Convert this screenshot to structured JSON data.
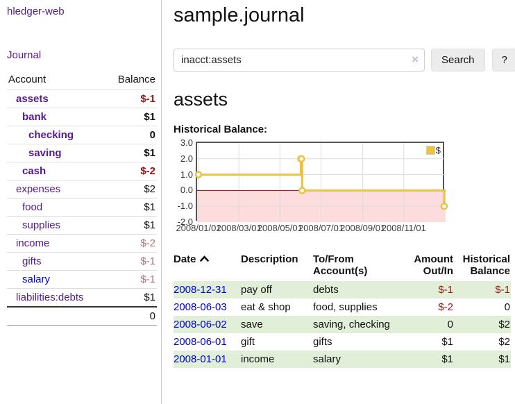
{
  "app": {
    "title": "hledger-web"
  },
  "colors": {
    "link_purple": "#551a8b",
    "link_blue": "#0000cc",
    "negative": "#991111",
    "negative_dim": "#b96f75",
    "row_stripe_green": "#e1efd8",
    "series_gold": "#edc240",
    "negative_region_pink": "#fcdcdc",
    "zero_line_red": "#990000",
    "grid_gray": "#dcdcdc"
  },
  "sidebar": {
    "journal_link": "Journal",
    "headers": {
      "account": "Account",
      "balance": "Balance"
    },
    "accounts": [
      {
        "name": "assets",
        "depth": 1,
        "bold": true,
        "balance": "$-1"
      },
      {
        "name": "bank",
        "depth": 2,
        "bold": true,
        "balance": "$1"
      },
      {
        "name": "checking",
        "depth": 3,
        "bold": true,
        "balance": "0"
      },
      {
        "name": "saving",
        "depth": 3,
        "bold": true,
        "balance": "$1"
      },
      {
        "name": "cash",
        "depth": 2,
        "bold": true,
        "balance": "$-2"
      },
      {
        "name": "expenses",
        "depth": 1,
        "bold": false,
        "balance": "$2"
      },
      {
        "name": "food",
        "depth": 2,
        "bold": false,
        "balance": "$1"
      },
      {
        "name": "supplies",
        "depth": 2,
        "bold": false,
        "balance": "$1"
      },
      {
        "name": "income",
        "depth": 1,
        "bold": false,
        "balance": "$-2"
      },
      {
        "name": "gifts",
        "depth": 2,
        "bold": false,
        "balance": "$-1"
      },
      {
        "name": "salary",
        "depth": 2,
        "bold": false,
        "balance": "$-1",
        "link_style": "unvisited"
      },
      {
        "name": "liabilities:debts",
        "depth": 1,
        "bold": false,
        "balance": "$1"
      }
    ],
    "total": "0"
  },
  "main": {
    "title": "sample.journal",
    "search": {
      "value": "inacct:assets",
      "clear_icon": "×",
      "search_button": "Search",
      "help_button": "?"
    },
    "account_heading": "assets",
    "chart_heading": "Historical Balance:"
  },
  "chart_data": {
    "type": "line",
    "title": "Historical Balance:",
    "step": true,
    "series": [
      {
        "name": "$",
        "color": "#edc240",
        "points": [
          [
            "2008-01-01",
            1
          ],
          [
            "2008-06-01",
            2
          ],
          [
            "2008-06-02",
            2
          ],
          [
            "2008-06-03",
            0
          ],
          [
            "2008-12-31",
            -1
          ]
        ]
      }
    ],
    "xrange": [
      "2008-01-01",
      "2008-12-31"
    ],
    "ylim": [
      -2,
      3
    ],
    "yticks": [
      "3.0",
      "2.0",
      "1.0",
      "0.0",
      "-1.0",
      "-2.0"
    ],
    "xticks": [
      {
        "label": "2008/01/01",
        "date": "2008-01-01"
      },
      {
        "label": "2008/03/01",
        "date": "2008-03-01"
      },
      {
        "label": "2008/05/01",
        "date": "2008-05-01"
      },
      {
        "label": "2008/07/01",
        "date": "2008-07-01"
      },
      {
        "label": "2008/09/01",
        "date": "2008-09-01"
      },
      {
        "label": "2008/11/01",
        "date": "2008-11-01"
      }
    ],
    "grid": true,
    "legend_position": "top-right",
    "negative_region_below": 0
  },
  "transactions": {
    "headers": {
      "date": "Date",
      "description": "Description",
      "accounts": "To/From\nAccount(s)",
      "amount": "Amount\nOut/In",
      "balance": "Historical\nBalance"
    },
    "rows": [
      {
        "date": "2008-12-31",
        "description": "pay off",
        "accounts": "debts",
        "amount": "$-1",
        "balance": "$-1"
      },
      {
        "date": "2008-06-03",
        "description": "eat & shop",
        "accounts": "food, supplies",
        "amount": "$-2",
        "balance": "0"
      },
      {
        "date": "2008-06-02",
        "description": "save",
        "accounts": "saving, checking",
        "amount": "0",
        "balance": "$2"
      },
      {
        "date": "2008-06-01",
        "description": "gift",
        "accounts": "gifts",
        "amount": "$1",
        "balance": "$2"
      },
      {
        "date": "2008-01-01",
        "description": "income",
        "accounts": "salary",
        "amount": "$1",
        "balance": "$1"
      }
    ]
  }
}
